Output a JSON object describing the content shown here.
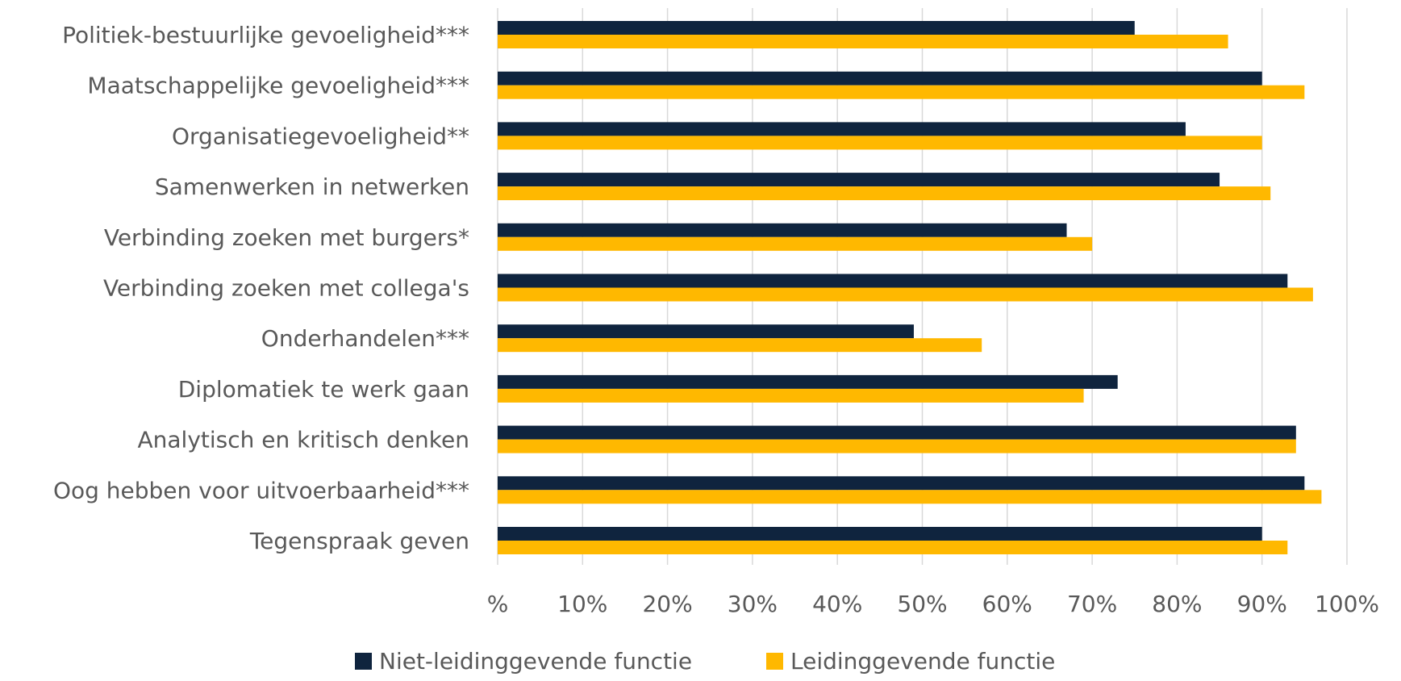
{
  "chart_data": {
    "type": "bar",
    "orientation": "horizontal",
    "title": "",
    "xlabel": "",
    "ylabel": "",
    "categories": [
      "Politiek-bestuurlijke gevoeligheid***",
      "Maatschappelijke gevoeligheid***",
      "Organisatiegevoeligheid**",
      "Samenwerken in netwerken",
      "Verbinding zoeken met burgers*",
      "Verbinding zoeken met collega's",
      "Onderhandelen***",
      "Diplomatiek te werk gaan",
      "Analytisch en kritisch denken",
      "Oog hebben voor uitvoerbaarheid***",
      "Tegenspraak geven"
    ],
    "series": [
      {
        "name": "Niet-leidinggevende functie",
        "color": "#0f243e",
        "values": [
          75,
          90,
          81,
          85,
          67,
          93,
          49,
          73,
          94,
          95,
          90
        ]
      },
      {
        "name": "Leidinggevende functie",
        "color": "#ffb800",
        "values": [
          86,
          95,
          90,
          91,
          70,
          96,
          57,
          69,
          94,
          97,
          93
        ]
      }
    ],
    "xlim": [
      0,
      100
    ],
    "ticks": [
      0,
      10,
      20,
      30,
      40,
      50,
      60,
      70,
      80,
      90,
      100
    ],
    "tick_labels": [
      "%",
      "10%",
      "20%",
      "30%",
      "40%",
      "50%",
      "60%",
      "70%",
      "80%",
      "90%",
      "100%"
    ],
    "grid": true,
    "legend_position": "bottom"
  }
}
